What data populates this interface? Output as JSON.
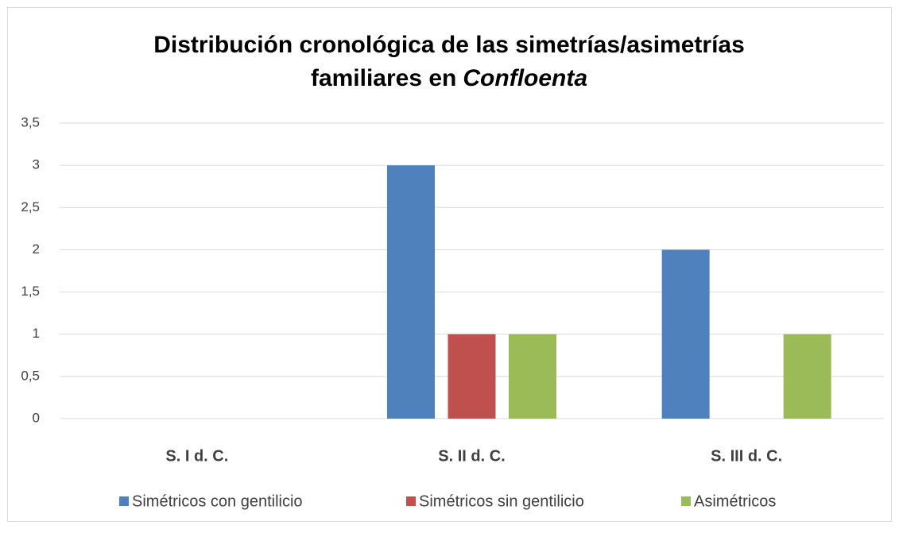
{
  "chart_data": {
    "type": "bar",
    "title_lines": [
      "Distribución cronológica de las simetrías/asimetrías",
      "familiares en"
    ],
    "title_italic": "Confloenta",
    "categories": [
      "S. I d. C.",
      "S. II d. C.",
      "S. III d. C."
    ],
    "series": [
      {
        "name": "Simétricos con gentilicio",
        "color": "#4f81bd",
        "values": [
          0,
          3,
          2
        ]
      },
      {
        "name": "Simétricos sin gentilicio",
        "color": "#c0504d",
        "values": [
          0,
          1,
          0
        ]
      },
      {
        "name": "Asimétricos",
        "color": "#9bbb59",
        "values": [
          0,
          1,
          1
        ]
      }
    ],
    "ylim": [
      0,
      3.5
    ],
    "yticks": [
      0,
      {
        "value": 0.5,
        "label": "0,5"
      },
      1,
      {
        "value": 1.5,
        "label": "1,5"
      },
      2,
      {
        "value": 2.5,
        "label": "2,5"
      },
      3,
      {
        "value": 3.5,
        "label": "3,5"
      }
    ],
    "grid": true,
    "legend": "bottom"
  }
}
